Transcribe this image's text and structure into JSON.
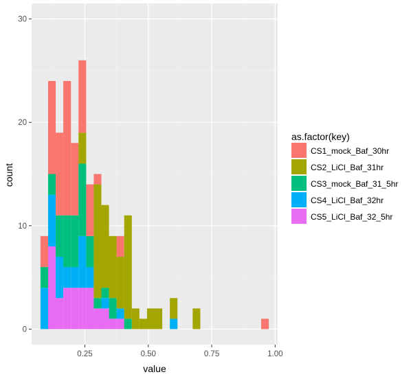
{
  "chart_data": {
    "type": "bar",
    "stacked": true,
    "xlabel": "value",
    "ylabel": "count",
    "xlim": [
      0.04,
      1.01
    ],
    "ylim": [
      -1.5,
      31.5
    ],
    "x_ticks": [
      {
        "value": 0.25,
        "label": "0.25"
      },
      {
        "value": 0.5,
        "label": "0.50"
      },
      {
        "value": 0.75,
        "label": "0.75"
      },
      {
        "value": 1.0,
        "label": "1.00"
      }
    ],
    "y_ticks": [
      {
        "value": 0,
        "label": "0"
      },
      {
        "value": 10,
        "label": "10"
      },
      {
        "value": 20,
        "label": "20"
      },
      {
        "value": 30,
        "label": "30"
      }
    ],
    "grid": true,
    "background": "#EBEBEB",
    "legend": {
      "title": "as.factor(key)",
      "placement": "right"
    },
    "bin_width": 0.03,
    "bin_centers": [
      0.09,
      0.12,
      0.15,
      0.18,
      0.21,
      0.24,
      0.27,
      0.3,
      0.33,
      0.36,
      0.39,
      0.42,
      0.45,
      0.48,
      0.51,
      0.54,
      0.57,
      0.6,
      0.63,
      0.66,
      0.69,
      0.72,
      0.75,
      0.78,
      0.81,
      0.84,
      0.87,
      0.9,
      0.93,
      0.96
    ],
    "series": [
      {
        "name": "CS1_mock_Baf_30hr",
        "color": "#F8766D",
        "values": [
          3,
          9,
          8,
          13,
          7,
          7,
          5,
          1,
          0,
          0,
          2,
          0,
          0,
          0,
          0,
          0,
          0,
          0,
          0,
          0,
          0,
          0,
          0,
          0,
          0,
          0,
          0,
          0,
          0,
          1
        ]
      },
      {
        "name": "CS2_LiCl_Baf_31hr",
        "color": "#A3A500",
        "values": [
          0,
          0,
          0,
          0,
          0,
          3,
          0,
          11,
          8,
          6,
          5,
          10,
          2,
          1,
          2,
          2,
          0,
          2,
          0,
          0,
          2,
          0,
          0,
          0,
          0,
          0,
          0,
          0,
          0,
          0
        ]
      },
      {
        "name": "CS3_mock_Baf_31_5hr",
        "color": "#00BF7D",
        "values": [
          2,
          2,
          4,
          5,
          5,
          7,
          3,
          1,
          1,
          2,
          0,
          1,
          0,
          0,
          0,
          0,
          0,
          0,
          0,
          0,
          0,
          0,
          0,
          0,
          0,
          0,
          0,
          0,
          0,
          0
        ]
      },
      {
        "name": "CS4_LiCl_Baf_32hr",
        "color": "#00B0F6",
        "values": [
          4,
          5,
          4,
          2,
          2,
          5,
          2,
          0,
          1,
          0,
          1,
          0,
          0,
          0,
          0,
          0,
          0,
          1,
          0,
          0,
          0,
          0,
          0,
          0,
          0,
          0,
          0,
          0,
          0,
          0
        ]
      },
      {
        "name": "CS5_LiCl_Baf_32_5hr",
        "color": "#E76BF3",
        "values": [
          0,
          8,
          3,
          4,
          4,
          4,
          4,
          2,
          2,
          1,
          1,
          0,
          0,
          0,
          0,
          0,
          0,
          0,
          0,
          0,
          0,
          0,
          0,
          0,
          0,
          0,
          0,
          0,
          0,
          0
        ]
      }
    ]
  }
}
